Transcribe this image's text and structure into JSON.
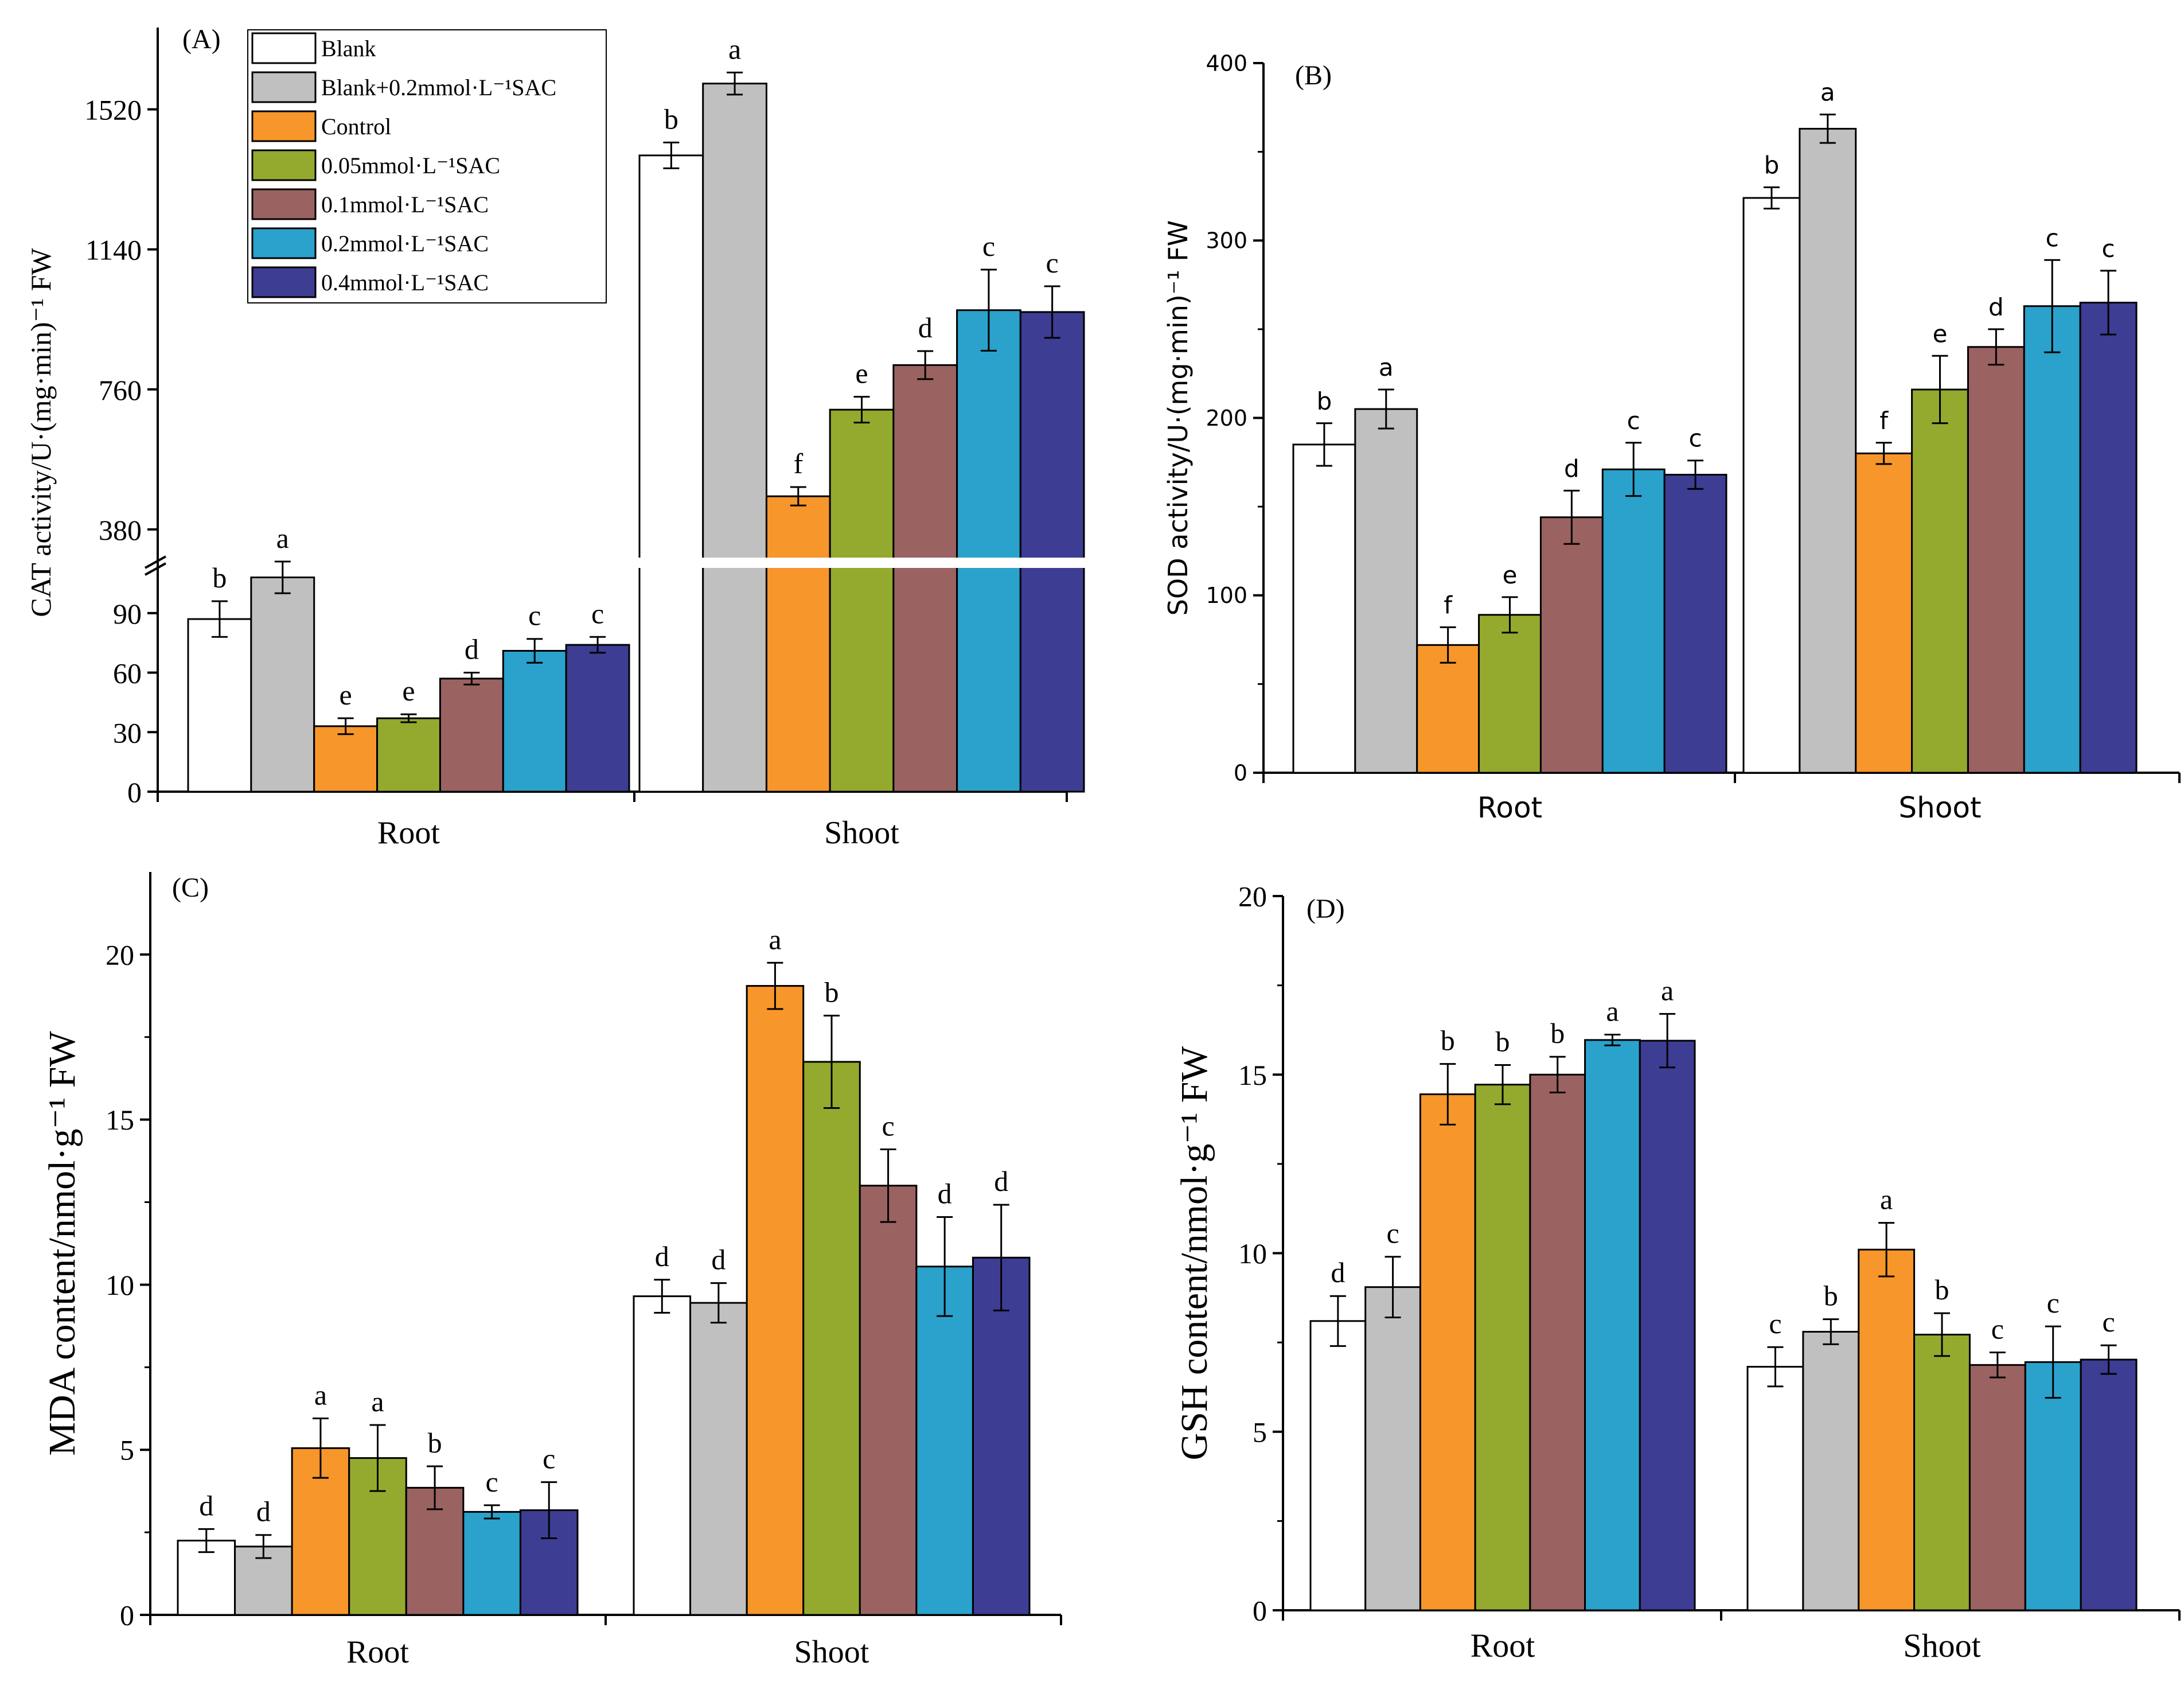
{
  "figure": {
    "legend": {
      "entries": [
        {
          "label": "Blank",
          "color": "#ffffff"
        },
        {
          "label": "Blank+0.2mmol·L⁻¹SAC",
          "color": "#c0c0c0"
        },
        {
          "label": "Control",
          "color": "#f7962b"
        },
        {
          "label": "0.05mmol·L⁻¹SAC",
          "color": "#93aa2f"
        },
        {
          "label": "0.1mmol·L⁻¹SAC",
          "color": "#9b6262"
        },
        {
          "label": "0.2mmol·L⁻¹SAC",
          "color": "#2aa2cc"
        },
        {
          "label": "0.4mmol·L⁻¹SAC",
          "color": "#3d3d94"
        }
      ]
    }
  },
  "chart_data": [
    {
      "id": "A",
      "panel_label": "(A)",
      "type": "bar",
      "ylabel": "CAT activity/U·(mg·min)⁻¹ FW",
      "categories": [
        "Root",
        "Shoot"
      ],
      "axis_break": {
        "lower": [
          0,
          120
        ],
        "upper": [
          260,
          1770
        ]
      },
      "yticks_lower": [
        0,
        30,
        60,
        90
      ],
      "yticks_upper": [
        380,
        760,
        1140,
        1520
      ],
      "series": [
        {
          "name": "Blank",
          "values": [
            87,
            1395
          ],
          "errors": [
            9,
            35
          ],
          "letters": [
            "b",
            "b"
          ]
        },
        {
          "name": "Blank+0.2mmol·L⁻¹SAC",
          "values": [
            108,
            1590
          ],
          "errors": [
            8,
            30
          ],
          "letters": [
            "a",
            "a"
          ]
        },
        {
          "name": "Control",
          "values": [
            33,
            470
          ],
          "errors": [
            4,
            25
          ],
          "letters": [
            "e",
            "f"
          ]
        },
        {
          "name": "0.05mmol·L⁻¹SAC",
          "values": [
            37,
            705
          ],
          "errors": [
            2,
            35
          ],
          "letters": [
            "e",
            "e"
          ]
        },
        {
          "name": "0.1mmol·L⁻¹SAC",
          "values": [
            57,
            826
          ],
          "errors": [
            3,
            38
          ],
          "letters": [
            "d",
            "d"
          ]
        },
        {
          "name": "0.2mmol·L⁻¹SAC",
          "values": [
            71,
            975
          ],
          "errors": [
            6,
            110
          ],
          "letters": [
            "c",
            "c"
          ]
        },
        {
          "name": "0.4mmol·L⁻¹SAC",
          "values": [
            74,
            970
          ],
          "errors": [
            4,
            70
          ],
          "letters": [
            "c",
            "c"
          ]
        }
      ]
    },
    {
      "id": "B",
      "panel_label": "(B)",
      "type": "bar",
      "ylabel": "SOD activity/U·(mg·min)⁻¹ FW",
      "categories": [
        "Root",
        "Shoot"
      ],
      "ylim": [
        0,
        400
      ],
      "yticks": [
        0,
        100,
        200,
        300,
        400
      ],
      "series": [
        {
          "name": "Blank",
          "values": [
            185,
            324
          ],
          "errors": [
            12,
            6
          ],
          "letters": [
            "b",
            "b"
          ]
        },
        {
          "name": "Blank+0.2mmol·L⁻¹SAC",
          "values": [
            205,
            363
          ],
          "errors": [
            11,
            8
          ],
          "letters": [
            "a",
            "a"
          ]
        },
        {
          "name": "Control",
          "values": [
            72,
            180
          ],
          "errors": [
            10,
            6
          ],
          "letters": [
            "f",
            "f"
          ]
        },
        {
          "name": "0.05mmol·L⁻¹SAC",
          "values": [
            89,
            216
          ],
          "errors": [
            10,
            19
          ],
          "letters": [
            "e",
            "e"
          ]
        },
        {
          "name": "0.1mmol·L⁻¹SAC",
          "values": [
            144,
            240
          ],
          "errors": [
            15,
            10
          ],
          "letters": [
            "d",
            "d"
          ]
        },
        {
          "name": "0.2mmol·L⁻¹SAC",
          "values": [
            171,
            263
          ],
          "errors": [
            15,
            26
          ],
          "letters": [
            "c",
            "c"
          ]
        },
        {
          "name": "0.4mmol·L⁻¹SAC",
          "values": [
            168,
            265
          ],
          "errors": [
            8,
            18
          ],
          "letters": [
            "c",
            "c"
          ]
        }
      ]
    },
    {
      "id": "C",
      "panel_label": "(C)",
      "type": "bar",
      "ylabel": "MDA content/nmol·g⁻¹ FW",
      "categories": [
        "Root",
        "Shoot"
      ],
      "ylim": [
        0,
        22.5
      ],
      "yticks": [
        0,
        5,
        10,
        15,
        20
      ],
      "series": [
        {
          "name": "Blank",
          "values": [
            2.25,
            9.65
          ],
          "errors": [
            0.35,
            0.5
          ],
          "letters": [
            "d",
            "d"
          ]
        },
        {
          "name": "Blank+0.2mmol·L⁻¹SAC",
          "values": [
            2.07,
            9.45
          ],
          "errors": [
            0.35,
            0.6
          ],
          "letters": [
            "d",
            "d"
          ]
        },
        {
          "name": "Control",
          "values": [
            5.05,
            19.05
          ],
          "errors": [
            0.9,
            0.7
          ],
          "letters": [
            "a",
            "a"
          ]
        },
        {
          "name": "0.05mmol·L⁻¹SAC",
          "values": [
            4.75,
            16.75
          ],
          "errors": [
            1.0,
            1.4
          ],
          "letters": [
            "a",
            "b"
          ]
        },
        {
          "name": "0.1mmol·L⁻¹SAC",
          "values": [
            3.85,
            13.0
          ],
          "errors": [
            0.65,
            1.1
          ],
          "letters": [
            "b",
            "c"
          ]
        },
        {
          "name": "0.2mmol·L⁻¹SAC",
          "values": [
            3.12,
            10.55
          ],
          "errors": [
            0.2,
            1.5
          ],
          "letters": [
            "c",
            "d"
          ]
        },
        {
          "name": "0.4mmol·L⁻¹SAC",
          "values": [
            3.17,
            10.82
          ],
          "errors": [
            0.85,
            1.6
          ],
          "letters": [
            "c",
            "d"
          ]
        }
      ]
    },
    {
      "id": "D",
      "panel_label": "(D)",
      "type": "bar",
      "ylabel": "GSH content/nmol·g⁻¹ FW",
      "categories": [
        "Root",
        "Shoot"
      ],
      "ylim": [
        0,
        20
      ],
      "yticks": [
        0,
        5,
        10,
        15,
        20
      ],
      "series": [
        {
          "name": "Blank",
          "values": [
            8.1,
            6.82
          ],
          "errors": [
            0.7,
            0.55
          ],
          "letters": [
            "d",
            "c"
          ]
        },
        {
          "name": "Blank+0.2mmol·L⁻¹SAC",
          "values": [
            9.05,
            7.8
          ],
          "errors": [
            0.85,
            0.35
          ],
          "letters": [
            "c",
            "b"
          ]
        },
        {
          "name": "Control",
          "values": [
            14.45,
            10.1
          ],
          "errors": [
            0.85,
            0.75
          ],
          "letters": [
            "b",
            "a"
          ]
        },
        {
          "name": "0.05mmol·L⁻¹SAC",
          "values": [
            14.72,
            7.72
          ],
          "errors": [
            0.55,
            0.6
          ],
          "letters": [
            "b",
            "b"
          ]
        },
        {
          "name": "0.1mmol·L⁻¹SAC",
          "values": [
            15.0,
            6.87
          ],
          "errors": [
            0.5,
            0.35
          ],
          "letters": [
            "b",
            "c"
          ]
        },
        {
          "name": "0.2mmol·L⁻¹SAC",
          "values": [
            15.97,
            6.95
          ],
          "errors": [
            0.15,
            1.0
          ],
          "letters": [
            "a",
            "c"
          ]
        },
        {
          "name": "0.4mmol·L⁻¹SAC",
          "values": [
            15.95,
            7.02
          ],
          "errors": [
            0.75,
            0.4
          ],
          "letters": [
            "a",
            "c"
          ]
        }
      ]
    }
  ]
}
